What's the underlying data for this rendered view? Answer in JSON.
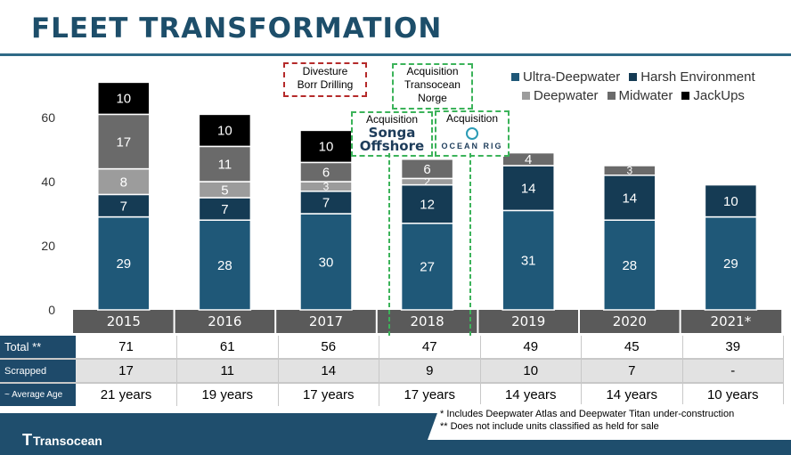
{
  "title": "FLEET TRANSFORMATION",
  "chart_data": {
    "type": "bar",
    "stacked": true,
    "categories": [
      "2015",
      "2016",
      "2017",
      "2018",
      "2019",
      "2020",
      "2021*"
    ],
    "series": [
      {
        "name": "Ultra-Deepwater",
        "color": "#1f5878",
        "values": [
          29,
          28,
          30,
          27,
          31,
          28,
          29
        ]
      },
      {
        "name": "Harsh Environment",
        "color": "#153b54",
        "values": [
          7,
          7,
          7,
          12,
          14,
          14,
          10
        ]
      },
      {
        "name": "Deepwater",
        "color": "#9c9c9c",
        "values": [
          8,
          5,
          3,
          2,
          0,
          0,
          0
        ]
      },
      {
        "name": "Midwater",
        "color": "#6a6a6a",
        "values": [
          17,
          11,
          6,
          6,
          4,
          3,
          0
        ]
      },
      {
        "name": "JackUps",
        "color": "#000000",
        "values": [
          10,
          10,
          10,
          0,
          0,
          0,
          0
        ]
      }
    ],
    "yticks": [
      0,
      20,
      40,
      60
    ],
    "ylim": [
      0,
      72
    ],
    "grid": false,
    "legend_position": "top-right",
    "annotations": [
      {
        "id": "divesture",
        "lines": [
          "Divesture",
          "Borr Drilling"
        ],
        "style": "red-dashed"
      },
      {
        "id": "songa",
        "lines": [
          "Acquisition"
        ],
        "brand": [
          "Songa",
          "Offshore"
        ],
        "style": "green-dashed"
      },
      {
        "id": "transocean-norge",
        "lines": [
          "Acquisition",
          "Transocean",
          "Norge"
        ],
        "style": "green-dashed"
      },
      {
        "id": "ocean-rig",
        "lines": [
          "Acquisition"
        ],
        "brand": [
          "OCEAN RIG"
        ],
        "style": "green-dashed"
      }
    ]
  },
  "table": {
    "rows": [
      {
        "label": "Total **",
        "values": [
          "71",
          "61",
          "56",
          "47",
          "49",
          "45",
          "39"
        ]
      },
      {
        "label": "Scrapped",
        "values": [
          "17",
          "11",
          "14",
          "9",
          "10",
          "7",
          "-"
        ]
      },
      {
        "label": "~ Average Age",
        "values": [
          "21 years",
          "19 years",
          "17 years",
          "17 years",
          "14 years",
          "14 years",
          "10 years"
        ]
      }
    ]
  },
  "footnotes": [
    "* Includes Deepwater Atlas and Deepwater Titan under-construction",
    "** Does not include units classified as held for sale"
  ],
  "logo": {
    "mark": "T",
    "text": "Transocean"
  }
}
